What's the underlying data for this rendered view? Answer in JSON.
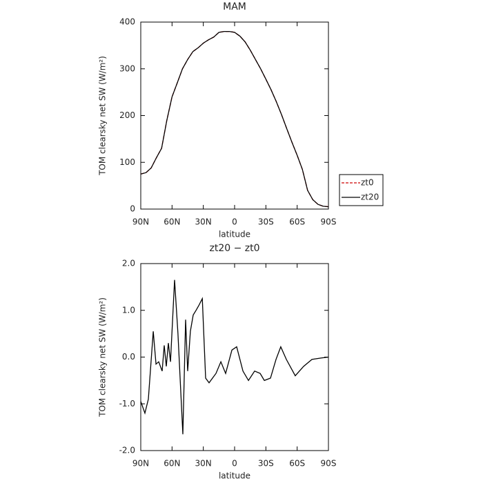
{
  "chart_data": [
    {
      "type": "line",
      "title": "MAM",
      "xlabel": "latitude",
      "ylabel": "TOM clearsky net SW (W/m²)",
      "x": [
        90,
        85,
        80,
        75,
        70,
        65,
        60,
        55,
        50,
        45,
        40,
        35,
        30,
        25,
        20,
        15,
        10,
        5,
        0,
        -5,
        -10,
        -15,
        -20,
        -25,
        -30,
        -35,
        -40,
        -45,
        -50,
        -55,
        -60,
        -65,
        -70,
        -75,
        -80,
        -85,
        -90
      ],
      "series": [
        {
          "name": "zt0",
          "color": "#cc0000",
          "linestyle": "dashed",
          "values": [
            75,
            78,
            88,
            110,
            130,
            190,
            240,
            270,
            300,
            320,
            337,
            345,
            355,
            362,
            368,
            378,
            380,
            380,
            378,
            370,
            358,
            340,
            320,
            300,
            278,
            255,
            230,
            202,
            172,
            143,
            115,
            85,
            40,
            20,
            10,
            6,
            5
          ]
        },
        {
          "name": "zt20",
          "color": "#000000",
          "linestyle": "solid",
          "values": [
            75,
            78,
            88,
            110,
            130,
            190,
            240,
            270,
            300,
            320,
            337,
            345,
            355,
            362,
            368,
            378,
            380,
            380,
            378,
            370,
            358,
            340,
            320,
            300,
            278,
            255,
            230,
            202,
            172,
            143,
            115,
            85,
            40,
            20,
            10,
            6,
            5
          ]
        }
      ],
      "xlim": [
        90,
        -90
      ],
      "xticks": [
        {
          "value": 90,
          "label": "90N"
        },
        {
          "value": 60,
          "label": "60N"
        },
        {
          "value": 30,
          "label": "30N"
        },
        0,
        {
          "value": -30,
          "label": "30S"
        },
        {
          "value": -60,
          "label": "60S"
        },
        {
          "value": -90,
          "label": "90S"
        }
      ],
      "ylim": [
        0,
        400
      ],
      "yticks": [
        0,
        100,
        200,
        300,
        400
      ],
      "legend": "right"
    },
    {
      "type": "line",
      "title": "zt20 − zt0",
      "xlabel": "latitude",
      "ylabel": "TOM clearsky net SW (W/m²)",
      "x": [
        90,
        86,
        82.7,
        78,
        75.4,
        72.8,
        69.5,
        67.5,
        65.5,
        63.5,
        61.5,
        57.6,
        54.3,
        49.6,
        47,
        45,
        42.4,
        39.7,
        37,
        34.4,
        31,
        27.8,
        24.5,
        17.9,
        13.2,
        8.6,
        2.6,
        -2,
        -8,
        -13.3,
        -19.2,
        -24.5,
        -28.5,
        -34.4,
        -39.7,
        -44.3,
        -49.6,
        -58.2,
        -66.2,
        -74.2,
        -82.8,
        -90
      ],
      "values": [
        -0.95,
        -1.2,
        -0.9,
        0.55,
        -0.15,
        -0.1,
        -0.3,
        0.25,
        -0.2,
        0.3,
        -0.1,
        1.65,
        0.5,
        -1.65,
        0.8,
        -0.3,
        0.55,
        0.9,
        1.0,
        1.1,
        1.25,
        -0.45,
        -0.55,
        -0.35,
        -0.1,
        -0.35,
        0.15,
        0.22,
        -0.3,
        -0.5,
        -0.3,
        -0.35,
        -0.5,
        -0.45,
        -0.05,
        0.22,
        -0.05,
        -0.4,
        -0.2,
        -0.05,
        -0.02,
        0.0
      ],
      "color": "#000000",
      "xlim": [
        90,
        -90
      ],
      "xticks": [
        {
          "value": 90,
          "label": "90N"
        },
        {
          "value": 60,
          "label": "60N"
        },
        {
          "value": 30,
          "label": "30N"
        },
        0,
        {
          "value": -30,
          "label": "30S"
        },
        {
          "value": -60,
          "label": "60S"
        },
        {
          "value": -90,
          "label": "90S"
        }
      ],
      "ylim": [
        -2,
        2
      ],
      "yticks": [
        {
          "value": -2,
          "label": "-2.0"
        },
        {
          "value": -1,
          "label": "-1.0"
        },
        {
          "value": 0,
          "label": "0.0"
        },
        {
          "value": 1,
          "label": "1.0"
        },
        {
          "value": 2,
          "label": "2.0"
        }
      ]
    }
  ]
}
